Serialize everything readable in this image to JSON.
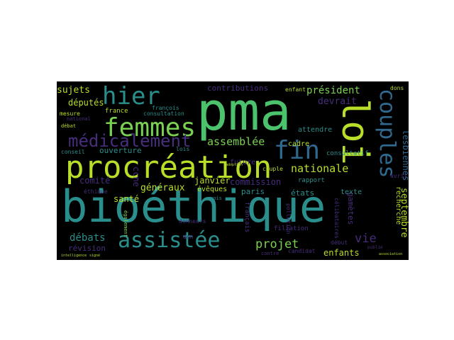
{
  "palette": {
    "background": "#000000",
    "page": "#ffffff",
    "teal": "#2a8e8c",
    "green": "#4cc26c",
    "yellow": "#b8de29",
    "purple": "#472d7b",
    "blue": "#31688e",
    "light_green": "#7ad151"
  },
  "words": [
    {
      "text": "bioéthique"
    },
    {
      "text": "pma"
    },
    {
      "text": "loi"
    },
    {
      "text": "procréation"
    },
    {
      "text": "femmes"
    },
    {
      "text": "hier"
    },
    {
      "text": "fin"
    },
    {
      "text": "couples"
    },
    {
      "text": "assistée"
    },
    {
      "text": "médicalement"
    },
    {
      "text": "nationale"
    },
    {
      "text": "assemblée"
    },
    {
      "text": "projet"
    },
    {
      "text": "débats"
    },
    {
      "text": "vie"
    },
    {
      "text": "septembre"
    },
    {
      "text": "lesbiennes"
    },
    {
      "text": "président"
    },
    {
      "text": "devrait"
    },
    {
      "text": "sujets"
    },
    {
      "text": "députés"
    },
    {
      "text": "contributions"
    },
    {
      "text": "ouverture"
    },
    {
      "text": "généraux"
    },
    {
      "text": "janvier"
    },
    {
      "text": "commission"
    },
    {
      "text": "comité"
    },
    {
      "text": "santé"
    },
    {
      "text": "révision"
    },
    {
      "text": "enfants"
    },
    {
      "text": "ccne"
    },
    {
      "text": "évêques"
    },
    {
      "text": "future"
    },
    {
      "text": "paris"
    },
    {
      "text": "états"
    },
    {
      "text": "cadre"
    },
    {
      "text": "attendre"
    },
    {
      "text": "rapport"
    },
    {
      "text": "recherche"
    },
    {
      "text": "gamètes"
    },
    {
      "text": "texte"
    },
    {
      "text": "mesure"
    },
    {
      "text": "france"
    },
    {
      "text": "conseil"
    },
    {
      "text": "éthique"
    },
    {
      "text": "également"
    },
    {
      "text": "consultation"
    },
    {
      "text": "lois"
    },
    {
      "text": "français"
    },
    {
      "text": "couple"
    },
    {
      "text": "consultatif"
    },
    {
      "text": "filiation"
    },
    {
      "text": "candidat"
    },
    {
      "text": "dons"
    },
    {
      "text": "enfant"
    },
    {
      "text": "débat"
    },
    {
      "text": "national"
    },
    {
      "text": "pollution"
    },
    {
      "text": "début"
    },
    {
      "text": "contre"
    },
    {
      "text": "françois"
    },
    {
      "text": "mois"
    },
    {
      "text": "donneurs"
    },
    {
      "text": "avril"
    },
    {
      "text": "don"
    },
    {
      "text": "célibataires"
    },
    {
      "text": "publié"
    },
    {
      "text": "signé"
    },
    {
      "text": "intelligence"
    },
    {
      "text": "association"
    },
    {
      "text": "adoption"
    }
  ]
}
